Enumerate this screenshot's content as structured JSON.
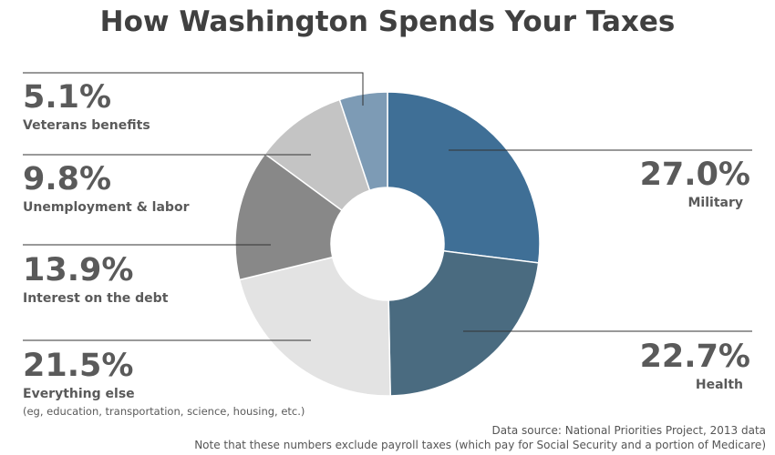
{
  "chart_data": {
    "type": "pie",
    "title": "How Washington Spends Your Taxes",
    "slices": [
      {
        "label": "Military",
        "value": 27.0,
        "value_label": "27.0%",
        "color": "#3f6f96"
      },
      {
        "label": "Health",
        "value": 22.7,
        "value_label": "22.7%",
        "color": "#4a6b80"
      },
      {
        "label": "Everything else",
        "value": 21.5,
        "value_label": "21.5%",
        "note": "(eg, education, transportation, science, housing, etc.)",
        "color": "#e3e3e3"
      },
      {
        "label": "Interest on the debt",
        "value": 13.9,
        "value_label": "13.9%",
        "color": "#888888"
      },
      {
        "label": "Unemployment & labor",
        "value": 9.8,
        "value_label": "9.8%",
        "color": "#c4c4c4"
      },
      {
        "label": "Veterans benefits",
        "value": 5.1,
        "value_label": "5.1%",
        "color": "#7d9bb5"
      }
    ]
  },
  "footer": {
    "source": "Data source: National Priorities Project, 2013 data",
    "note": "Note that these numbers exclude payroll taxes (which pay for Social Security and a portion of Medicare)"
  }
}
